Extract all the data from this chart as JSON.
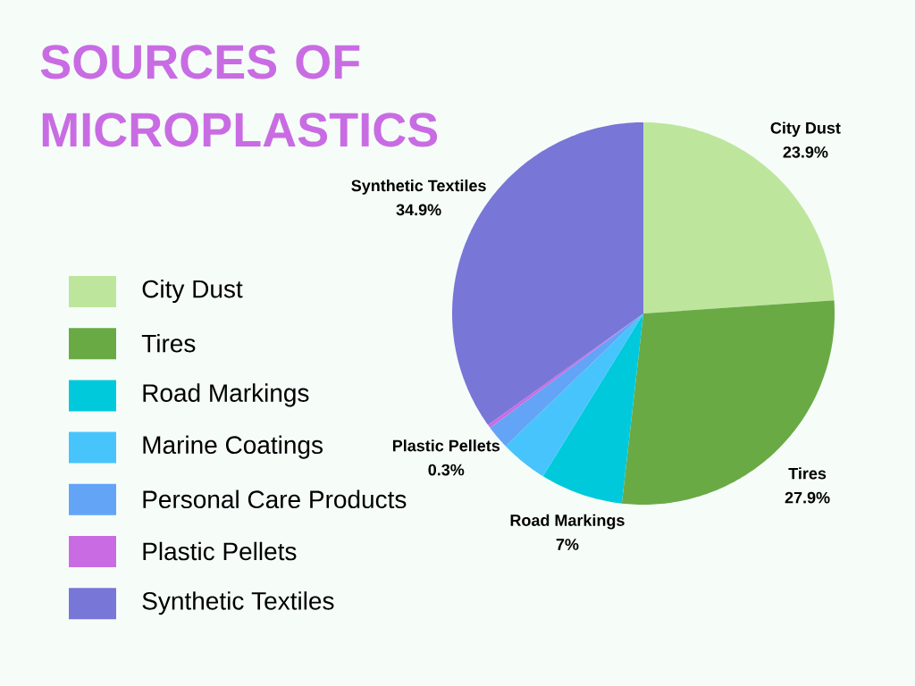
{
  "chart_data": {
    "type": "pie",
    "title": "SOURCES OF MICROPLASTICS",
    "categories": [
      "City Dust",
      "Tires",
      "Road Markings",
      "Marine Coatings",
      "Personal Care Products",
      "Plastic Pellets",
      "Synthetic Textiles"
    ],
    "values": [
      23.9,
      27.9,
      7,
      4,
      2,
      0.3,
      34.9
    ],
    "colors": [
      "#bde69c",
      "#6aaa45",
      "#00c9dc",
      "#48c4fc",
      "#63a4f7",
      "#c96ce3",
      "#7876d6"
    ],
    "value_labels": [
      "23.9%",
      "27.9%",
      "7%",
      null,
      null,
      "0.3%",
      "34.9%"
    ],
    "legend": "left"
  }
}
